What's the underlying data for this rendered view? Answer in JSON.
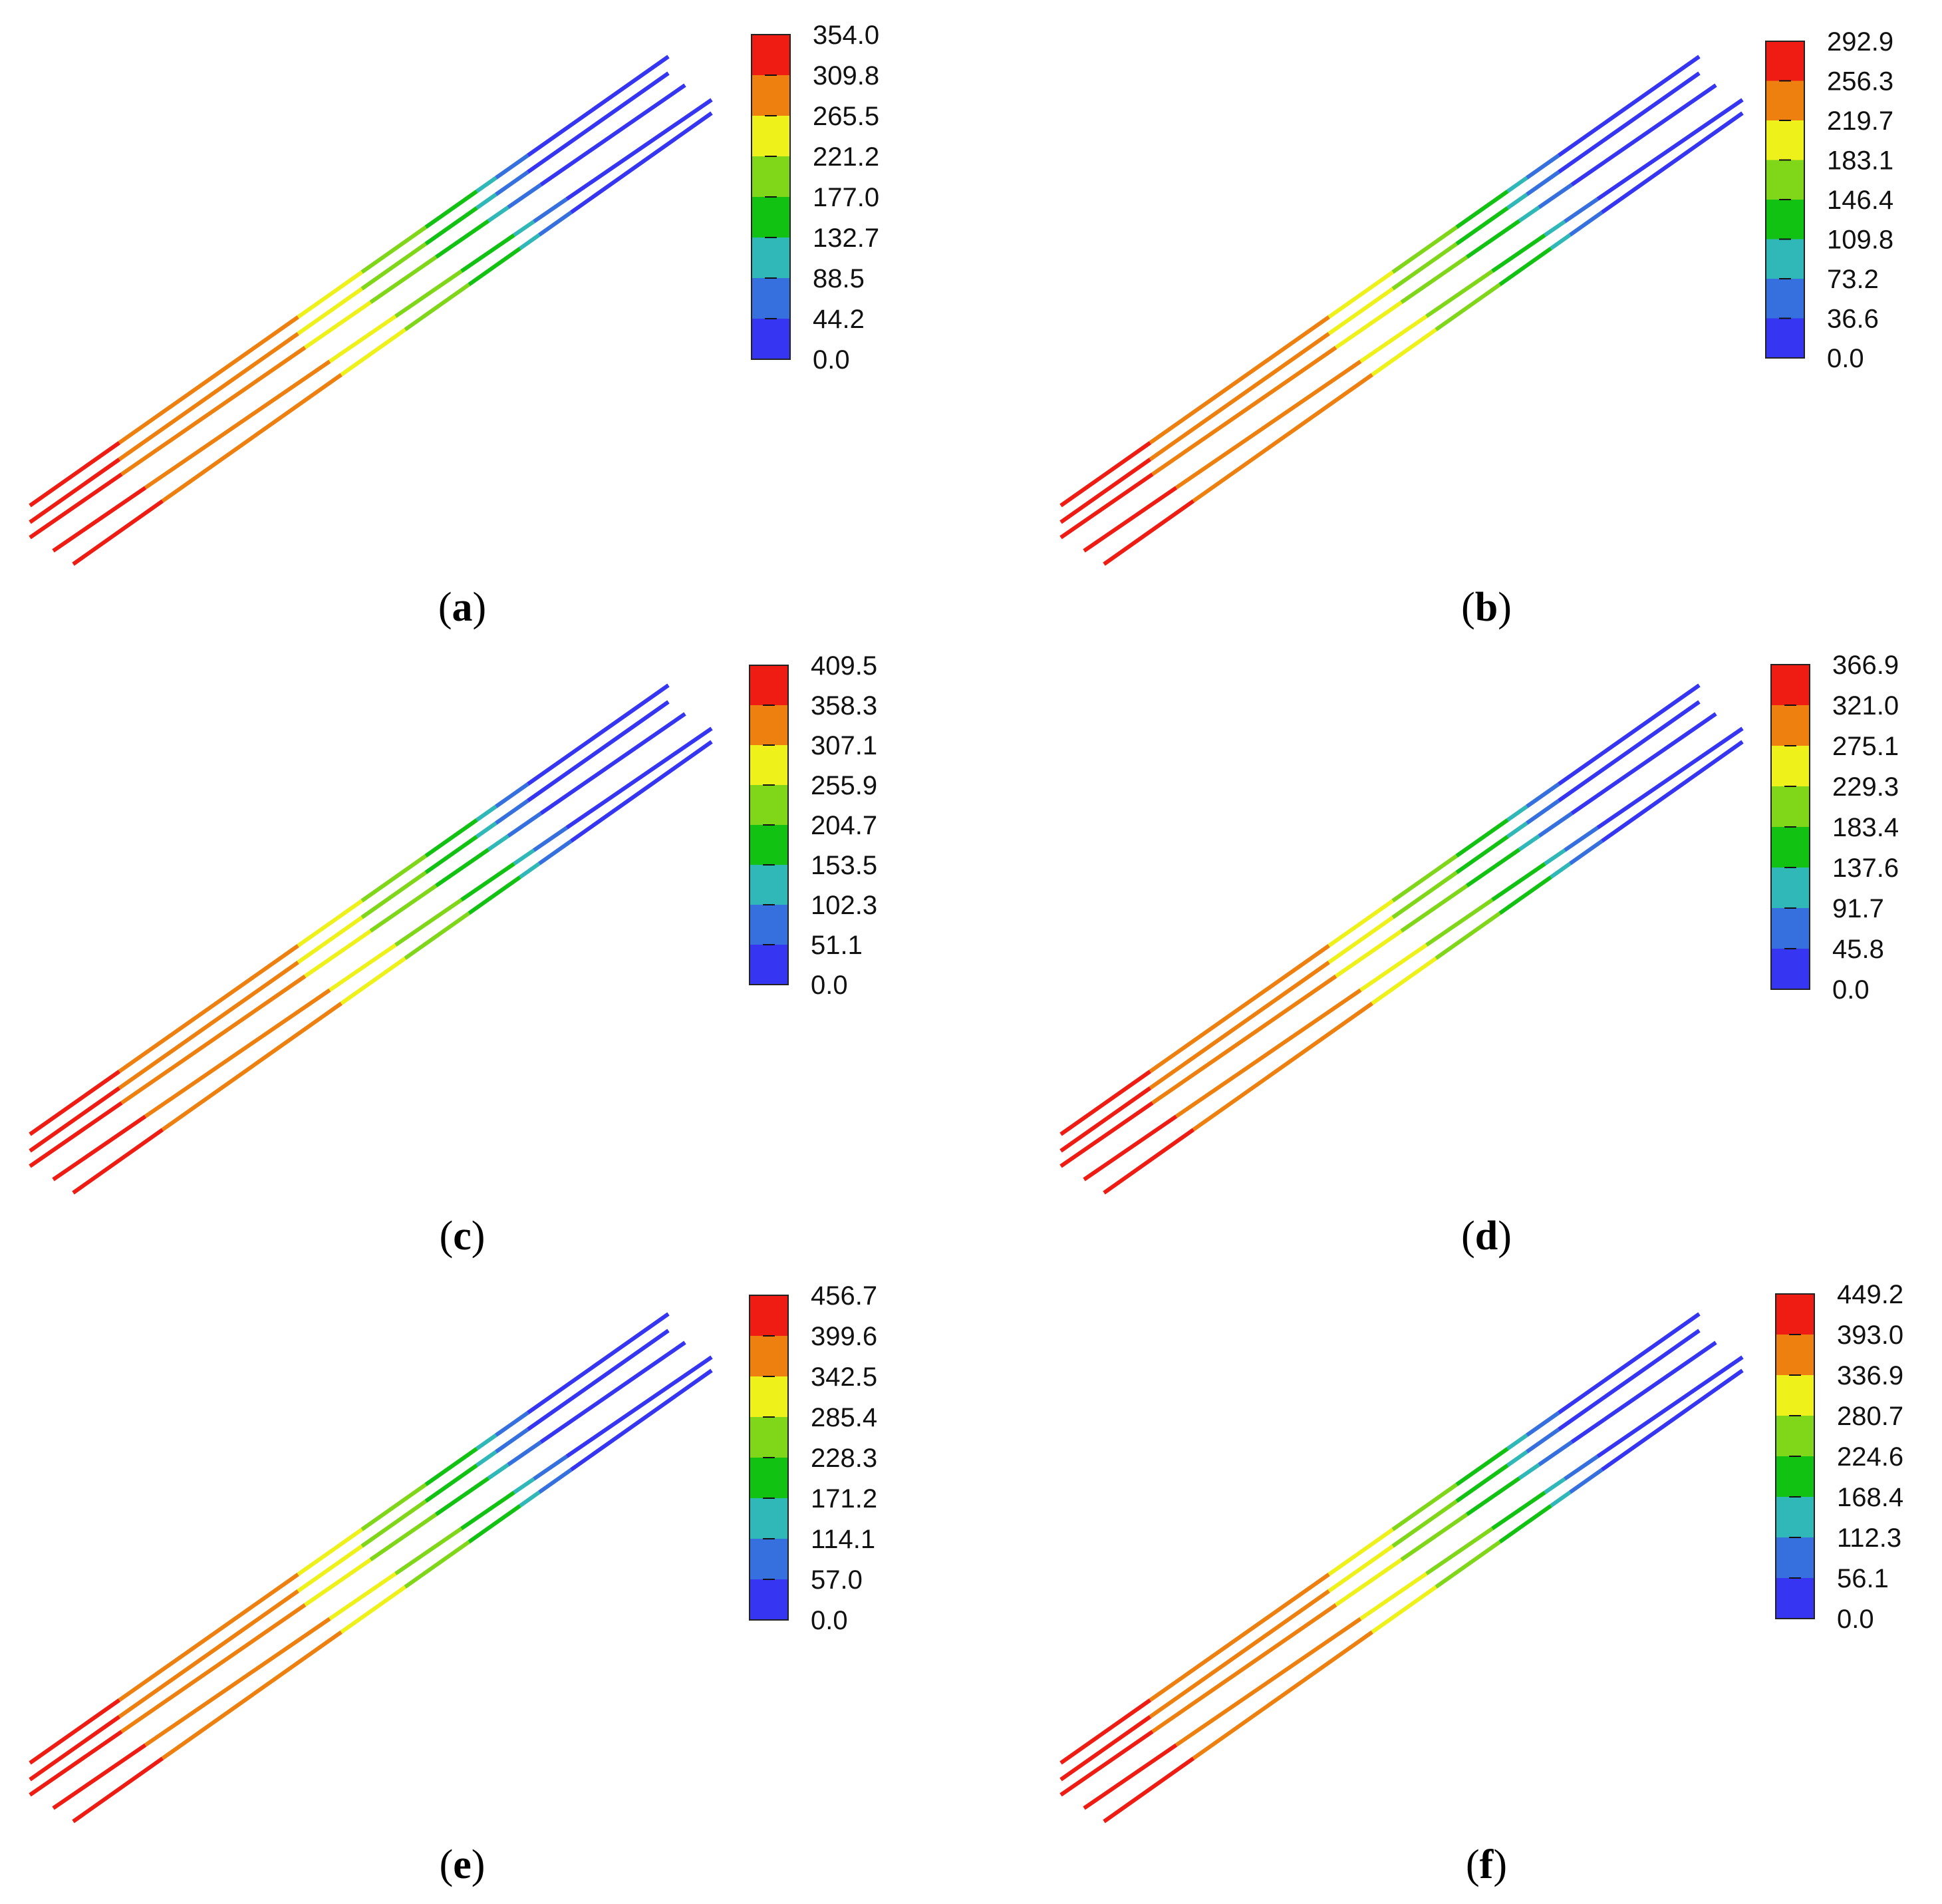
{
  "panels": [
    {
      "caption_letter": "a",
      "legend_ticks": [
        "354.0",
        "309.8",
        "265.5",
        "221.2",
        "177.0",
        "132.7",
        "88.5",
        "44.2",
        "0.0"
      ]
    },
    {
      "caption_letter": "b",
      "legend_ticks": [
        "292.9",
        "256.3",
        "219.7",
        "183.1",
        "146.4",
        "109.8",
        "73.2",
        "36.6",
        "0.0"
      ]
    },
    {
      "caption_letter": "c",
      "legend_ticks": [
        "409.5",
        "358.3",
        "307.1",
        "255.9",
        "204.7",
        "153.5",
        "102.3",
        "51.1",
        "0.0"
      ]
    },
    {
      "caption_letter": "d",
      "legend_ticks": [
        "366.9",
        "321.0",
        "275.1",
        "229.3",
        "183.4",
        "137.6",
        "91.7",
        "45.8",
        "0.0"
      ]
    },
    {
      "caption_letter": "e",
      "legend_ticks": [
        "456.7",
        "399.6",
        "342.5",
        "285.4",
        "228.3",
        "171.2",
        "114.1",
        "57.0",
        "0.0"
      ]
    },
    {
      "caption_letter": "f",
      "legend_ticks": [
        "449.2",
        "393.0",
        "336.9",
        "280.7",
        "224.6",
        "168.4",
        "112.3",
        "56.1",
        "0.0"
      ]
    }
  ],
  "colormap": [
    "#ee1c12",
    "#ee8010",
    "#eef21a",
    "#80d618",
    "#12c212",
    "#30b8b8",
    "#3570de",
    "#3535f2"
  ]
}
